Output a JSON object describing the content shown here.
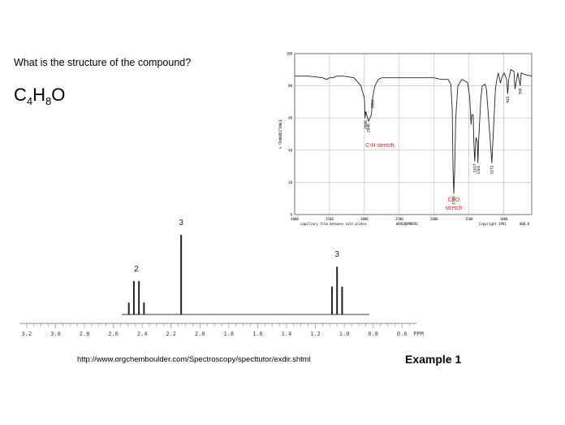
{
  "question": "What is the structure of the compound?",
  "formula": {
    "c": "C",
    "c_sub": "4",
    "h": "H",
    "h_sub": "8",
    "o": "O"
  },
  "source_url": "http://www.orgchemboulder.com/Spectroscopy/specttutor/exdir.shtml",
  "example_label": "Example 1",
  "chart_data": [
    {
      "type": "line",
      "ylabel": "% TRANSMITTANCE",
      "xlabel": "WAVENUMBERS",
      "x_caption": "capillary film between salt plates",
      "copyright": "Copyright 1992",
      "code": "000.0",
      "x_ticks": [
        4000,
        3500,
        3000,
        2500,
        2000,
        1500,
        1000
      ],
      "y_ticks": [
        0,
        20,
        40,
        60,
        80,
        100
      ],
      "xlim": [
        4000,
        600
      ],
      "ylim": [
        0,
        100
      ],
      "grid": true,
      "series": [
        {
          "x": [
            4000,
            3800,
            3600,
            3540,
            3500,
            3450,
            3400,
            3300,
            3150,
            3050,
            3000,
            2990,
            2980,
            2940,
            2900,
            2880,
            2850,
            2800,
            2750,
            2600,
            2400,
            2200,
            2000,
            1900,
            1800,
            1760,
            1740,
            1730,
            1718,
            1705,
            1690,
            1660,
            1600,
            1520,
            1490,
            1470,
            1460,
            1440,
            1430,
            1417,
            1400,
            1380,
            1372,
            1360,
            1330,
            1310,
            1270,
            1250,
            1172,
            1120,
            1100,
            1080,
            1050,
            1020,
            995,
            960,
            945,
            930,
            900,
            855,
            840,
            800,
            765,
            750,
            700,
            600
          ],
          "y": [
            86,
            86,
            85,
            84,
            85,
            85,
            86,
            86,
            85,
            80,
            72,
            60,
            64,
            58,
            62,
            73,
            80,
            84,
            85,
            85,
            85,
            85,
            85,
            84,
            84,
            81,
            65,
            30,
            13,
            28,
            60,
            80,
            84,
            82,
            73,
            56,
            62,
            62,
            45,
            33,
            48,
            45,
            32,
            47,
            72,
            80,
            81,
            78,
            32,
            78,
            84,
            88,
            82,
            86,
            88,
            84,
            75,
            84,
            90,
            89,
            78,
            88,
            80,
            88,
            87,
            86
          ]
        }
      ],
      "peak_labels": [
        {
          "x": 2980,
          "y": 60,
          "text": "2980"
        },
        {
          "x": 2940,
          "y": 58,
          "text": "2940"
        },
        {
          "x": 2880,
          "y": 73,
          "text": "2883"
        },
        {
          "x": 1718,
          "y": 13,
          "text": "1718"
        },
        {
          "x": 1417,
          "y": 33,
          "text": "1417"
        },
        {
          "x": 1365,
          "y": 32,
          "text": "1366"
        },
        {
          "x": 1172,
          "y": 32,
          "text": "1172"
        },
        {
          "x": 945,
          "y": 75,
          "text": "945"
        },
        {
          "x": 765,
          "y": 80,
          "text": "760"
        }
      ],
      "annotations": [
        {
          "x": 2780,
          "y": 42,
          "text": "C-H stretch",
          "color": "#e02020"
        },
        {
          "x": 1718,
          "y": 8,
          "text": "C=O",
          "color": "#e02020"
        },
        {
          "x": 1718,
          "y": 3,
          "text": "stretch",
          "color": "#e02020"
        }
      ]
    },
    {
      "type": "line",
      "xlabel": "PPM",
      "x_ticks": [
        3.2,
        3.0,
        2.8,
        2.6,
        2.4,
        2.2,
        2.0,
        1.8,
        1.6,
        1.4,
        1.2,
        1.0,
        0.8,
        0.6
      ],
      "xlim": [
        3.25,
        0.5
      ],
      "peaks": [
        {
          "center": 2.44,
          "multiplicity": "quartet",
          "spacing": 0.035,
          "heights": [
            0.15,
            0.42,
            0.42,
            0.15
          ],
          "integration": "2"
        },
        {
          "center": 2.13,
          "multiplicity": "singlet",
          "heights": [
            1.0
          ],
          "integration": "3"
        },
        {
          "center": 1.05,
          "multiplicity": "triplet",
          "spacing": 0.035,
          "heights": [
            0.35,
            0.6,
            0.35
          ],
          "integration": "3"
        }
      ],
      "integrations": [
        {
          "ppm": 2.44,
          "text": "2"
        },
        {
          "ppm": 2.13,
          "text": "3"
        },
        {
          "ppm": 1.05,
          "text": "3"
        }
      ]
    }
  ]
}
